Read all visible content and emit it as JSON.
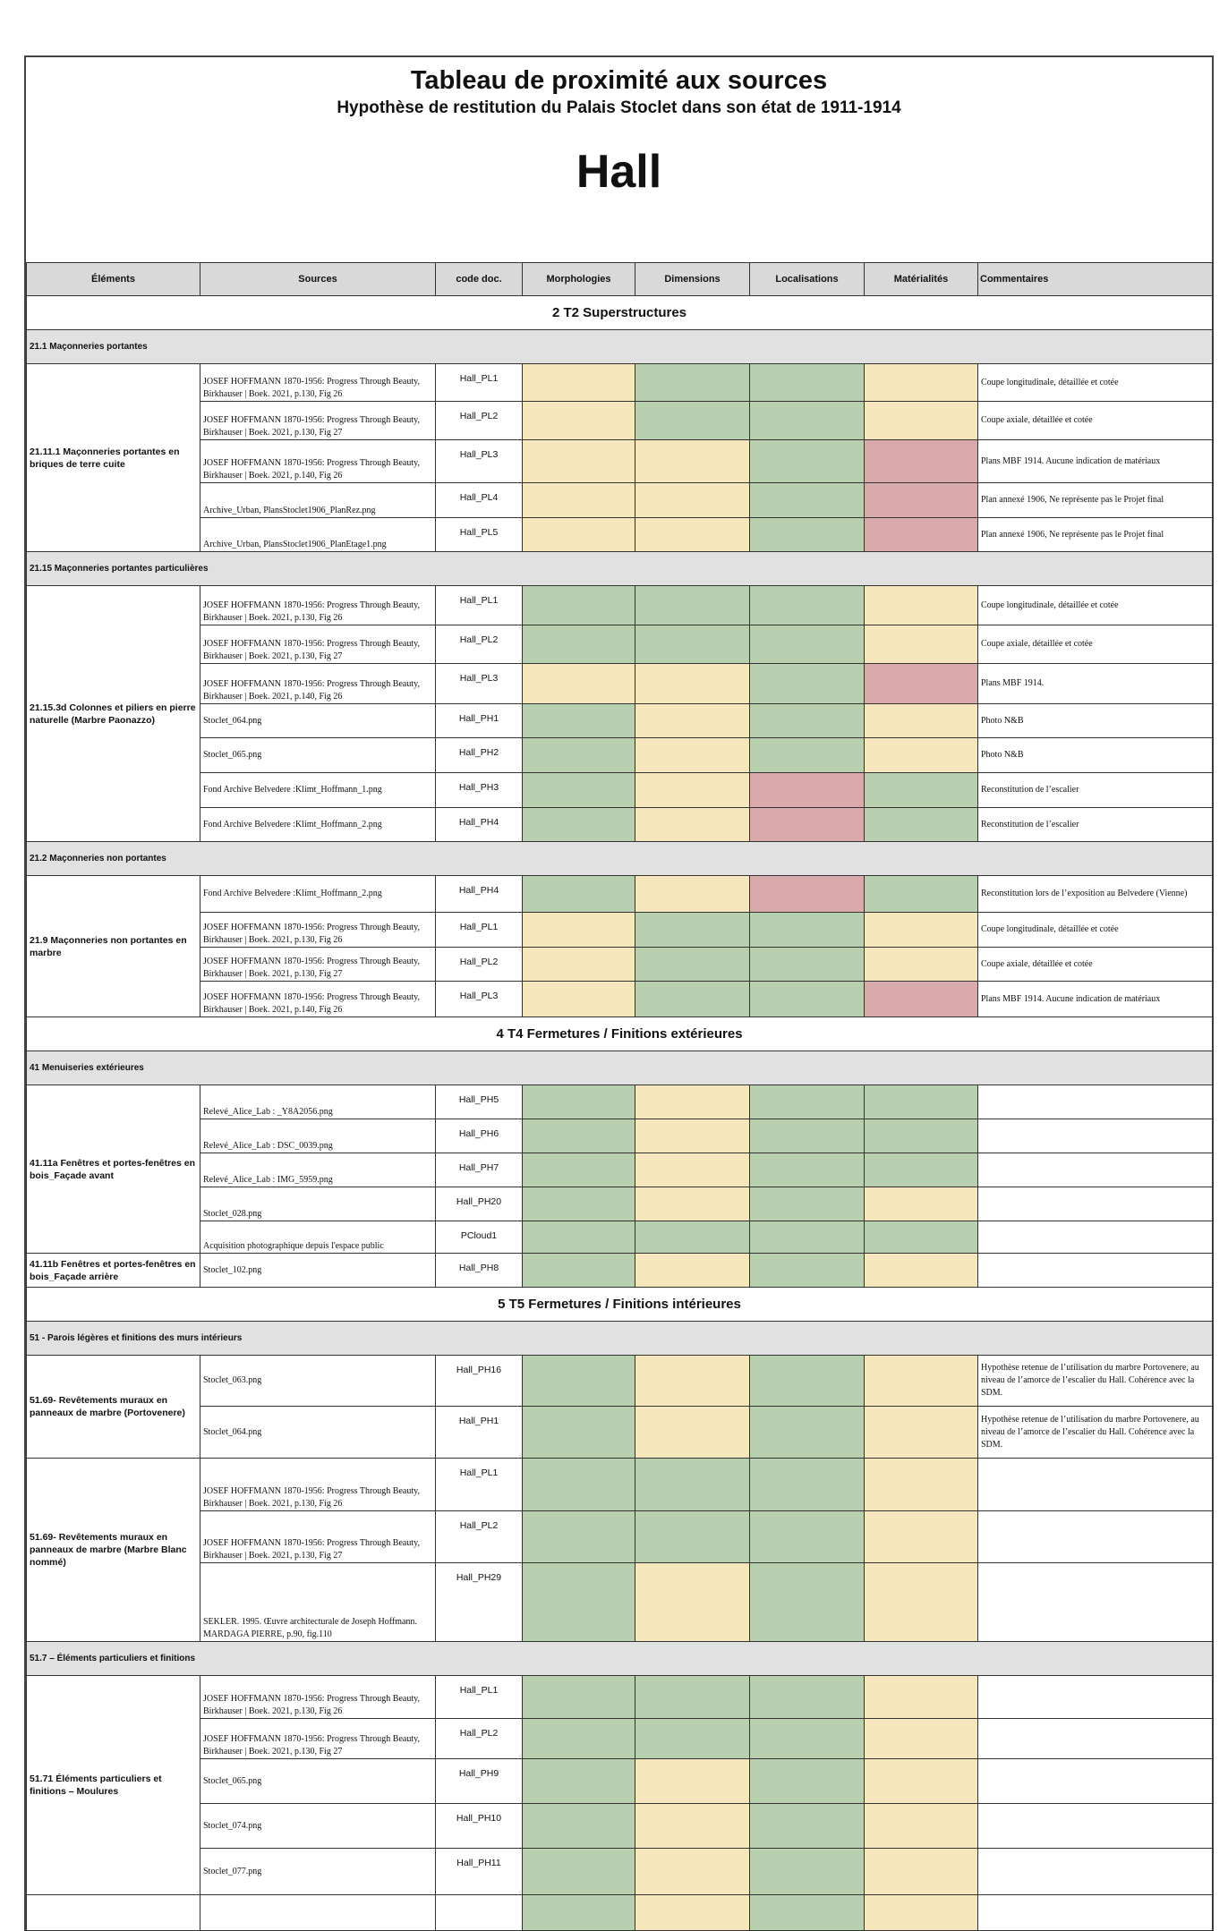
{
  "title": "Tableau de proximité aux sources",
  "subtitle": "Hypothèse de restitution du Palais Stoclet dans son état de 1911-1914",
  "room": "Hall",
  "columns": [
    "Éléments",
    "Sources",
    "code doc.",
    "Morphologies",
    "Dimensions",
    "Localisations",
    "Matérialités",
    "Commentaires"
  ],
  "colors": {
    "green": "#b9d0b0",
    "yellow": "#f5e6bb",
    "red": "#d9a9ac",
    "header": "#d9d9d9",
    "subheader": "#e2e1e2"
  },
  "blocks": [
    {
      "type": "section",
      "title": "2 T2 Superstructures"
    },
    {
      "type": "sub",
      "title": "21.1 Maçonneries portantes"
    },
    {
      "type": "group",
      "element": "21.11.1 Maçonneries portantes en briques de terre cuite",
      "rows": [
        {
          "source": "JOSEF HOFFMANN 1870-1956: Progress Through Beauty, Birkhauser | Boek. 2021, p.130, Fig 26",
          "code": "Hall_PL1",
          "ratings": [
            "yellow",
            "green",
            "green",
            "yellow"
          ],
          "comment": "Coupe longitudinale, détaillée et cotée"
        },
        {
          "source": "JOSEF HOFFMANN 1870-1956: Progress Through Beauty, Birkhauser | Boek. 2021, p.130, Fig 27",
          "code": "Hall_PL2",
          "ratings": [
            "yellow",
            "green",
            "green",
            "yellow"
          ],
          "comment": "Coupe axiale, détaillée et cotée"
        },
        {
          "source": "JOSEF HOFFMANN 1870-1956: Progress Through Beauty, Birkhauser | Boek. 2021, p.140, Fig 26",
          "code": "Hall_PL3",
          "ratings": [
            "yellow",
            "yellow",
            "green",
            "red"
          ],
          "comment": "Plans MBF 1914. Aucune indication de matériaux"
        },
        {
          "source": "Archive_Urban, PlansStoclet1906_PlanRez.png",
          "code": "Hall_PL4",
          "ratings": [
            "yellow",
            "yellow",
            "green",
            "red"
          ],
          "comment": "Plan annexé 1906, Ne représente pas le Projet final"
        },
        {
          "source": "Archive_Urban, PlansStoclet1906_PlanEtage1.png",
          "code": "Hall_PL5",
          "ratings": [
            "yellow",
            "yellow",
            "green",
            "red"
          ],
          "comment": "Plan annexé 1906, Ne représente pas le Projet final"
        }
      ]
    },
    {
      "type": "sub",
      "title": "21.15 Maçonneries portantes particulières"
    },
    {
      "type": "group",
      "element": "21.15.3d Colonnes et piliers en pierre naturelle (Marbre Paonazzo)",
      "rows": [
        {
          "source": "JOSEF HOFFMANN 1870-1956: Progress Through Beauty, Birkhauser | Boek. 2021, p.130, Fig 26",
          "code": "Hall_PL1",
          "ratings": [
            "green",
            "green",
            "green",
            "yellow"
          ],
          "comment": "Coupe longitudinale, détaillée et cotée"
        },
        {
          "source": "JOSEF HOFFMANN 1870-1956: Progress Through Beauty, Birkhauser | Boek. 2021, p.130, Fig 27",
          "code": "Hall_PL2",
          "ratings": [
            "green",
            "green",
            "green",
            "yellow"
          ],
          "comment": "Coupe axiale, détaillée et cotée"
        },
        {
          "source": "JOSEF HOFFMANN 1870-1956: Progress Through Beauty, Birkhauser | Boek. 2021, p.140, Fig 26",
          "code": "Hall_PL3",
          "ratings": [
            "yellow",
            "yellow",
            "green",
            "red"
          ],
          "comment": "Plans MBF 1914."
        },
        {
          "source": "Stoclet_064.png",
          "code": "Hall_PH1",
          "ratings": [
            "green",
            "yellow",
            "green",
            "yellow"
          ],
          "comment": "Photo N&B"
        },
        {
          "source": "Stoclet_065.png",
          "code": "Hall_PH2",
          "ratings": [
            "green",
            "yellow",
            "green",
            "yellow"
          ],
          "comment": "Photo N&B"
        },
        {
          "source": "Fond Archive Belvedere :Klimt_Hoffmann_1.png",
          "code": "Hall_PH3",
          "ratings": [
            "green",
            "yellow",
            "red",
            "green"
          ],
          "comment": "Reconstitution de l’escalier"
        },
        {
          "source": "Fond Archive Belvedere :Klimt_Hoffmann_2.png",
          "code": "Hall_PH4",
          "ratings": [
            "green",
            "yellow",
            "red",
            "green"
          ],
          "comment": "Reconstitution de l’escalier"
        }
      ]
    },
    {
      "type": "sub",
      "title": "21.2 Maçonneries non portantes"
    },
    {
      "type": "group",
      "element": "21.9 Maçonneries non portantes en marbre",
      "rows": [
        {
          "source": "Fond Archive Belvedere :Klimt_Hoffmann_2.png",
          "code": "Hall_PH4",
          "ratings": [
            "green",
            "yellow",
            "red",
            "green"
          ],
          "comment": "Reconstitution lors de l’exposition au Belvedere (Vienne)"
        },
        {
          "source": "JOSEF HOFFMANN 1870-1956: Progress Through Beauty, Birkhauser | Boek. 2021, p.130, Fig 26",
          "code": "Hall_PL1",
          "ratings": [
            "yellow",
            "green",
            "green",
            "yellow"
          ],
          "comment": "Coupe longitudinale, détaillée et cotée"
        },
        {
          "source": "JOSEF HOFFMANN 1870-1956: Progress Through Beauty, Birkhauser | Boek. 2021, p.130, Fig 27",
          "code": "Hall_PL2",
          "ratings": [
            "yellow",
            "green",
            "green",
            "yellow"
          ],
          "comment": "Coupe axiale, détaillée et cotée"
        },
        {
          "source": "JOSEF HOFFMANN 1870-1956: Progress Through Beauty, Birkhauser | Boek. 2021, p.140, Fig 26",
          "code": "Hall_PL3",
          "ratings": [
            "yellow",
            "green",
            "green",
            "red"
          ],
          "comment": "Plans MBF 1914. Aucune indication de matériaux"
        }
      ]
    },
    {
      "type": "section",
      "title": "4 T4 Fermetures / Finitions extérieures"
    },
    {
      "type": "sub",
      "title": "41 Menuiseries extérieures"
    },
    {
      "type": "group",
      "element": "41.11a Fenêtres et portes-fenêtres en bois_Façade avant",
      "rows": [
        {
          "source": "Relevé_Alice_Lab : _Y8A2056.png",
          "code": "Hall_PH5",
          "ratings": [
            "green",
            "yellow",
            "green",
            "green"
          ],
          "comment": ""
        },
        {
          "source": "Relevé_Alice_Lab : DSC_0039.png",
          "code": "Hall_PH6",
          "ratings": [
            "green",
            "yellow",
            "green",
            "green"
          ],
          "comment": ""
        },
        {
          "source": "Relevé_Alice_Lab : IMG_5959.png",
          "code": "Hall_PH7",
          "ratings": [
            "green",
            "yellow",
            "green",
            "green"
          ],
          "comment": ""
        },
        {
          "source": "Stoclet_028.png",
          "code": "Hall_PH20",
          "ratings": [
            "green",
            "yellow",
            "green",
            "yellow"
          ],
          "comment": ""
        },
        {
          "source": "Acquisition photographique depuis l'espace public",
          "code": "PCloud1",
          "ratings": [
            "green",
            "green",
            "green",
            "green"
          ],
          "comment": ""
        }
      ]
    },
    {
      "type": "group",
      "element": "41.11b Fenêtres et portes-fenêtres en bois_Façade arrière",
      "rows": [
        {
          "source": "Stoclet_102.png",
          "code": "Hall_PH8",
          "ratings": [
            "green",
            "yellow",
            "green",
            "yellow"
          ],
          "comment": ""
        }
      ]
    },
    {
      "type": "section",
      "title": "5 T5 Fermetures / Finitions intérieures"
    },
    {
      "type": "sub",
      "title": "51 - Parois légères et finitions des murs intérieurs"
    },
    {
      "type": "group",
      "element": "51.69- Revêtements  muraux en panneaux de marbre (Portovenere)",
      "rows": [
        {
          "source": "Stoclet_063.png",
          "code": "Hall_PH16",
          "ratings": [
            "green",
            "yellow",
            "green",
            "yellow"
          ],
          "comment": "Hypothèse retenue de l’utilisation du marbre Portovenere, au niveau de l’amorce de l’escalier du Hall. Cohérence avec la SDM."
        },
        {
          "source": "Stoclet_064.png",
          "code": "Hall_PH1",
          "ratings": [
            "green",
            "yellow",
            "green",
            "yellow"
          ],
          "comment": "Hypothèse retenue de l’utilisation du marbre Portovenere, au niveau de l’amorce de l’escalier du Hall. Cohérence avec la SDM."
        }
      ]
    },
    {
      "type": "group",
      "element": "51.69- Revêtements  muraux en panneaux de marbre (Marbre Blanc nommé)",
      "rows": [
        {
          "source": "JOSEF HOFFMANN 1870-1956: Progress Through Beauty, Birkhauser | Boek. 2021, p.130, Fig 26",
          "code": "Hall_PL1",
          "ratings": [
            "green",
            "green",
            "green",
            "yellow"
          ],
          "comment": ""
        },
        {
          "source": "JOSEF HOFFMANN 1870-1956: Progress Through Beauty, Birkhauser | Boek. 2021, p.130, Fig 27",
          "code": "Hall_PL2",
          "ratings": [
            "green",
            "green",
            "green",
            "yellow"
          ],
          "comment": ""
        },
        {
          "source": "SEKLER. 1995. Œuvre architecturale de Joseph Hoffmann. MARDAGA PIERRE, p.90, fig.110",
          "code": "Hall_PH29",
          "ratings": [
            "green",
            "yellow",
            "green",
            "yellow"
          ],
          "comment": ""
        }
      ]
    },
    {
      "type": "sub",
      "title": "51.7 – Éléments particuliers et finitions"
    },
    {
      "type": "group",
      "element": "51.71 Éléments particuliers et finitions – Moulures",
      "rows": [
        {
          "source": "JOSEF HOFFMANN 1870-1956: Progress Through Beauty, Birkhauser | Boek. 2021, p.130, Fig 26",
          "code": "Hall_PL1",
          "ratings": [
            "green",
            "green",
            "green",
            "yellow"
          ],
          "comment": ""
        },
        {
          "source": "JOSEF HOFFMANN 1870-1956: Progress Through Beauty, Birkhauser | Boek. 2021, p.130, Fig 27",
          "code": "Hall_PL2",
          "ratings": [
            "green",
            "green",
            "green",
            "yellow"
          ],
          "comment": ""
        },
        {
          "source": "Stoclet_065.png",
          "code": "Hall_PH9",
          "ratings": [
            "green",
            "yellow",
            "green",
            "yellow"
          ],
          "comment": ""
        },
        {
          "source": "Stoclet_074.png",
          "code": "Hall_PH10",
          "ratings": [
            "green",
            "yellow",
            "green",
            "yellow"
          ],
          "comment": ""
        },
        {
          "source": "Stoclet_077.png",
          "code": "Hall_PH11",
          "ratings": [
            "green",
            "yellow",
            "green",
            "yellow"
          ],
          "comment": ""
        }
      ]
    },
    {
      "type": "group",
      "element": "",
      "rows": [
        {
          "source": "",
          "code": "",
          "ratings": [
            "green",
            "yellow",
            "green",
            "yellow"
          ],
          "comment": ""
        }
      ]
    }
  ]
}
